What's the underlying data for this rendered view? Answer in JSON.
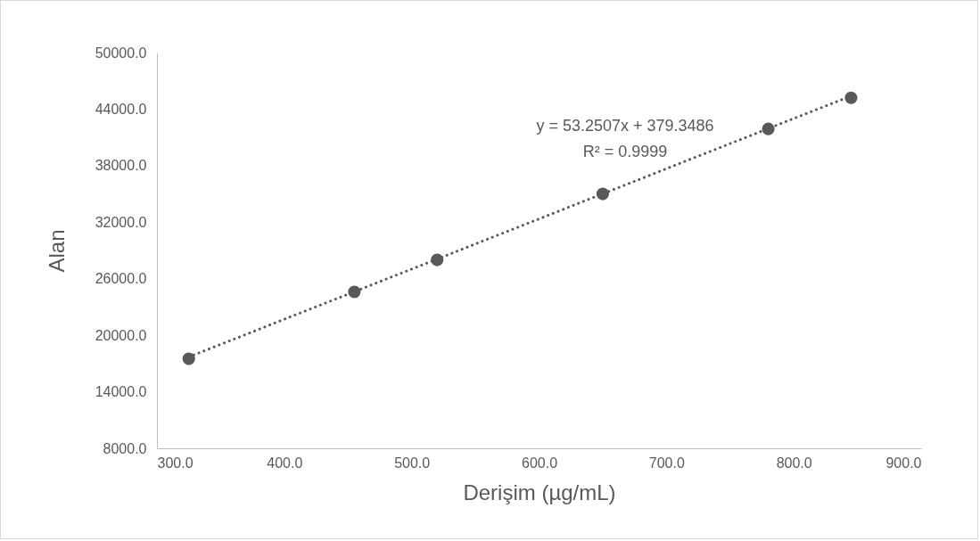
{
  "chart_data": {
    "type": "scatter",
    "xlabel": "Derişim (µg/mL)",
    "ylabel": "Alan",
    "series": [
      {
        "type": "scatter",
        "color": "#595959",
        "marker": "circle",
        "x": [
          325,
          455,
          520,
          650,
          780,
          845
        ],
        "values": [
          17500,
          24600,
          28000,
          35000,
          41900,
          45200
        ]
      },
      {
        "type": "line",
        "color": "#595959",
        "line_style": "dotted",
        "x": [
          325,
          845
        ],
        "values": [
          17700,
          45400
        ]
      }
    ],
    "xlim": [
      300,
      900
    ],
    "xticks": [
      {
        "value": 300,
        "label": "300.0"
      },
      {
        "value": 400,
        "label": "400.0"
      },
      {
        "value": 500,
        "label": "500.0"
      },
      {
        "value": 600,
        "label": "600.0"
      },
      {
        "value": 700,
        "label": "700.0"
      },
      {
        "value": 800,
        "label": "800.0"
      },
      {
        "value": 900,
        "label": "900.0"
      }
    ],
    "ylim": [
      8000,
      50000
    ],
    "yticks": [
      {
        "value": 8000,
        "label": "8000.0"
      },
      {
        "value": 14000,
        "label": "14000.0"
      },
      {
        "value": 20000,
        "label": "20000.0"
      },
      {
        "value": 26000,
        "label": "26000.0"
      },
      {
        "value": 32000,
        "label": "32000.0"
      },
      {
        "value": 38000,
        "label": "38000.0"
      },
      {
        "value": 44000,
        "label": "44000.0"
      },
      {
        "value": 50000,
        "label": "50000.0"
      }
    ],
    "annotations": [
      "y = 53.2507x + 379.3486",
      "R² = 0.9999"
    ]
  }
}
